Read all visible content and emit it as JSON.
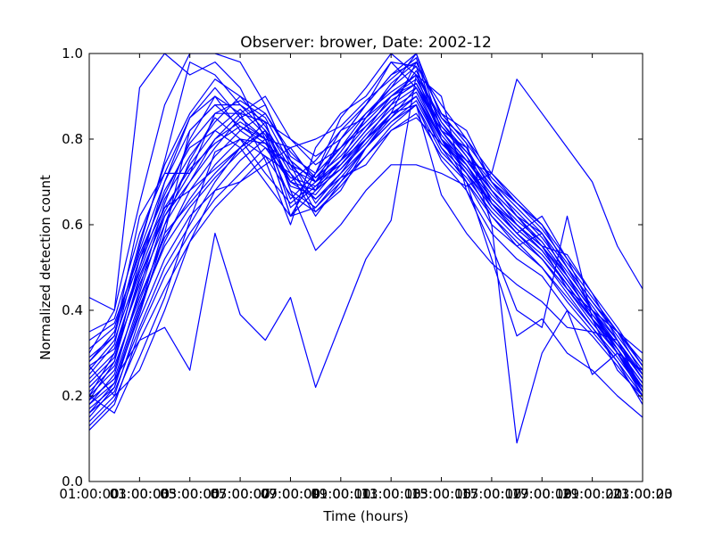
{
  "chart_data": {
    "type": "line",
    "title": "Observer: brower, Date: 2002-12",
    "xlabel": "Time (hours)",
    "ylabel": "Normalized detection count",
    "xlim": [
      1,
      23
    ],
    "ylim": [
      0,
      1.0
    ],
    "grid": false,
    "legend": "none",
    "line_color": "#0000ff",
    "x_ticks": [
      1,
      3,
      5,
      7,
      9,
      11,
      13,
      15,
      17,
      19,
      21,
      23
    ],
    "x_tick_labels": [
      "01:00:00",
      "03:00:00",
      "05:00:00",
      "07:00:00",
      "09:00:00",
      "11:00:00",
      "13:00:00",
      "15:00:00",
      "17:00:00",
      "19:00:00",
      "21:00:00",
      "23:00:00"
    ],
    "x_tick_offset_labels": [
      "",
      "01:00:03",
      "03:00:05",
      "05:00:07",
      "07:00:09",
      "09:00:11",
      "11:00:13",
      "13:00:15",
      "15:00:17",
      "17:00:19",
      "19:00:21",
      "21:00:23"
    ],
    "y_ticks": [
      0.0,
      0.2,
      0.4,
      0.6,
      0.8,
      1.0
    ],
    "y_tick_labels": [
      "0.0",
      "0.2",
      "0.4",
      "0.6",
      "0.8",
      "1.0"
    ],
    "x": [
      1,
      2,
      3,
      4,
      5,
      6,
      7,
      8,
      9,
      10,
      11,
      12,
      13,
      14,
      15,
      16,
      17,
      18,
      19,
      20,
      21,
      22,
      23
    ],
    "series": [
      {
        "values": [
          0.43,
          0.4,
          0.92,
          1.0,
          0.95,
          0.98,
          0.92,
          0.8,
          0.66,
          0.72,
          0.82,
          0.88,
          0.95,
          1.0,
          0.85,
          0.8,
          0.7,
          0.62,
          0.58,
          0.48,
          0.4,
          0.35,
          0.3
        ]
      },
      {
        "values": [
          0.3,
          0.4,
          0.65,
          0.88,
          1.0,
          1.0,
          0.98,
          0.88,
          0.75,
          0.7,
          0.75,
          0.85,
          0.92,
          1.0,
          0.82,
          0.78,
          0.68,
          0.6,
          0.55,
          0.45,
          0.38,
          0.3,
          0.22
        ]
      },
      {
        "values": [
          0.25,
          0.32,
          0.55,
          0.75,
          0.98,
          0.95,
          0.88,
          0.82,
          0.7,
          0.68,
          0.8,
          0.88,
          0.98,
          0.97,
          0.8,
          0.75,
          0.72,
          0.65,
          0.6,
          0.5,
          0.42,
          0.35,
          0.25
        ]
      },
      {
        "values": [
          0.2,
          0.3,
          0.5,
          0.7,
          0.85,
          0.92,
          0.85,
          0.8,
          0.62,
          0.72,
          0.85,
          0.92,
          1.0,
          0.95,
          0.85,
          0.78,
          0.65,
          0.58,
          0.62,
          0.52,
          0.4,
          0.32,
          0.24
        ]
      },
      {
        "values": [
          0.18,
          0.25,
          0.45,
          0.65,
          0.8,
          0.9,
          0.86,
          0.75,
          0.6,
          0.78,
          0.86,
          0.9,
          0.98,
          0.92,
          0.8,
          0.72,
          0.62,
          0.55,
          0.58,
          0.48,
          0.38,
          0.3,
          0.22
        ]
      },
      {
        "values": [
          0.15,
          0.22,
          0.4,
          0.6,
          0.75,
          0.85,
          0.8,
          0.72,
          0.65,
          0.7,
          0.8,
          0.88,
          0.95,
          0.98,
          0.86,
          0.82,
          0.7,
          0.65,
          0.6,
          0.5,
          0.4,
          0.3,
          0.2
        ]
      },
      {
        "values": [
          0.28,
          0.35,
          0.52,
          0.68,
          0.78,
          0.82,
          0.78,
          0.7,
          0.62,
          0.68,
          0.75,
          0.82,
          0.88,
          0.92,
          0.82,
          0.75,
          0.68,
          0.62,
          0.55,
          0.48,
          0.38,
          0.32,
          0.25
        ]
      },
      {
        "values": [
          0.35,
          0.38,
          0.58,
          0.72,
          0.85,
          0.9,
          0.82,
          0.78,
          0.7,
          0.75,
          0.82,
          0.85,
          0.9,
          0.95,
          0.8,
          0.72,
          0.65,
          0.58,
          0.52,
          0.45,
          0.4,
          0.35,
          0.28
        ]
      },
      {
        "values": [
          0.22,
          0.28,
          0.48,
          0.62,
          0.7,
          0.78,
          0.85,
          0.88,
          0.75,
          0.65,
          0.72,
          0.8,
          0.86,
          0.9,
          0.78,
          0.7,
          0.6,
          0.55,
          0.5,
          0.42,
          0.35,
          0.28,
          0.2
        ]
      },
      {
        "values": [
          0.19,
          0.24,
          0.42,
          0.58,
          0.65,
          0.72,
          0.78,
          0.82,
          0.72,
          0.62,
          0.7,
          0.78,
          0.84,
          0.88,
          0.75,
          0.68,
          0.58,
          0.52,
          0.48,
          0.4,
          0.34,
          0.27,
          0.19
        ]
      },
      {
        "values": [
          0.14,
          0.2,
          0.38,
          0.52,
          0.62,
          0.68,
          0.75,
          0.8,
          0.78,
          0.7,
          0.75,
          0.82,
          0.9,
          0.93,
          0.82,
          0.74,
          0.64,
          0.58,
          0.52,
          0.44,
          0.36,
          0.28,
          0.18
        ]
      },
      {
        "values": [
          0.12,
          0.18,
          0.35,
          0.48,
          0.58,
          0.66,
          0.72,
          0.78,
          0.74,
          0.68,
          0.73,
          0.8,
          0.88,
          0.96,
          0.84,
          0.76,
          0.66,
          0.6,
          0.54,
          0.46,
          0.38,
          0.3,
          0.2
        ]
      },
      {
        "values": [
          0.26,
          0.33,
          0.5,
          0.66,
          0.76,
          0.84,
          0.9,
          0.86,
          0.76,
          0.72,
          0.78,
          0.84,
          0.9,
          0.94,
          0.83,
          0.77,
          0.7,
          0.64,
          0.58,
          0.5,
          0.42,
          0.34,
          0.26
        ]
      },
      {
        "values": [
          0.24,
          0.3,
          0.46,
          0.6,
          0.7,
          0.8,
          0.84,
          0.8,
          0.7,
          0.66,
          0.72,
          0.78,
          0.84,
          0.89,
          0.78,
          0.72,
          0.64,
          0.58,
          0.53,
          0.46,
          0.38,
          0.31,
          0.23
        ]
      },
      {
        "values": [
          0.31,
          0.36,
          0.54,
          0.7,
          0.82,
          0.88,
          0.88,
          0.84,
          0.68,
          0.64,
          0.7,
          0.76,
          0.82,
          0.86,
          0.76,
          0.7,
          0.62,
          0.56,
          0.5,
          0.43,
          0.36,
          0.29,
          0.21
        ]
      },
      {
        "values": [
          0.2,
          0.26,
          0.44,
          0.62,
          0.72,
          0.8,
          0.86,
          0.9,
          0.8,
          0.74,
          0.78,
          0.86,
          0.92,
          0.97,
          0.88,
          0.8,
          0.72,
          0.66,
          0.6,
          0.52,
          0.44,
          0.36,
          0.27
        ]
      },
      {
        "values": [
          0.17,
          0.22,
          0.4,
          0.56,
          0.68,
          0.76,
          0.82,
          0.86,
          0.77,
          0.71,
          0.76,
          0.83,
          0.89,
          0.93,
          0.81,
          0.74,
          0.66,
          0.6,
          0.55,
          0.47,
          0.39,
          0.31,
          0.22
        ]
      },
      {
        "values": [
          0.29,
          0.34,
          0.56,
          0.74,
          0.86,
          0.94,
          0.9,
          0.83,
          0.73,
          0.7,
          0.77,
          0.85,
          0.93,
          0.98,
          0.86,
          0.79,
          0.71,
          0.65,
          0.59,
          0.51,
          0.43,
          0.35,
          0.27
        ]
      },
      {
        "values": [
          0.16,
          0.21,
          0.36,
          0.5,
          0.6,
          0.7,
          0.78,
          0.84,
          0.8,
          0.76,
          0.8,
          0.86,
          0.91,
          0.95,
          0.84,
          0.77,
          0.69,
          0.63,
          0.57,
          0.49,
          0.41,
          0.33,
          0.24
        ]
      },
      {
        "values": [
          0.21,
          0.27,
          0.43,
          0.57,
          0.66,
          0.74,
          0.8,
          0.76,
          0.67,
          0.63,
          0.69,
          0.76,
          0.83,
          0.88,
          0.77,
          0.71,
          0.63,
          0.57,
          0.52,
          0.45,
          0.37,
          0.3,
          0.22
        ]
      },
      {
        "values": [
          0.23,
          0.29,
          0.47,
          0.63,
          0.74,
          0.82,
          0.87,
          0.81,
          0.69,
          0.67,
          0.74,
          0.81,
          0.87,
          0.91,
          0.8,
          0.74,
          0.66,
          0.6,
          0.55,
          0.47,
          0.39,
          0.32,
          0.24
        ]
      },
      {
        "values": [
          0.27,
          0.31,
          0.49,
          0.64,
          0.73,
          0.79,
          0.83,
          0.79,
          0.71,
          0.69,
          0.75,
          0.8,
          0.85,
          0.9,
          0.79,
          0.73,
          0.65,
          0.59,
          0.54,
          0.46,
          0.38,
          0.31,
          0.23
        ]
      },
      {
        "values": [
          0.33,
          0.37,
          0.53,
          0.67,
          0.79,
          0.86,
          0.89,
          0.85,
          0.74,
          0.71,
          0.78,
          0.83,
          0.89,
          0.93,
          0.83,
          0.76,
          0.68,
          0.62,
          0.56,
          0.48,
          0.4,
          0.33,
          0.25
        ]
      },
      {
        "values": [
          0.18,
          0.23,
          0.41,
          0.55,
          0.64,
          0.71,
          0.77,
          0.82,
          0.75,
          0.7,
          0.74,
          0.8,
          0.86,
          0.9,
          0.8,
          0.73,
          0.65,
          0.59,
          0.54,
          0.46,
          0.38,
          0.3,
          0.21
        ]
      },
      {
        "values": [
          0.13,
          0.19,
          0.33,
          0.45,
          0.56,
          0.64,
          0.7,
          0.76,
          0.72,
          0.66,
          0.71,
          0.78,
          0.85,
          0.92,
          0.82,
          0.75,
          0.67,
          0.61,
          0.56,
          0.48,
          0.4,
          0.31,
          0.21
        ]
      },
      {
        "values": [
          0.27,
          0.2,
          0.26,
          0.4,
          0.56,
          0.68,
          0.7,
          0.74,
          0.78,
          0.8,
          0.83,
          0.89,
          0.94,
          0.99,
          0.8,
          0.7,
          0.52,
          0.34,
          0.38,
          0.3,
          0.26,
          0.2,
          0.15
        ]
      },
      {
        "values": [
          0.2,
          0.16,
          0.29,
          0.43,
          0.61,
          0.77,
          0.8,
          0.79,
          0.74,
          0.63,
          0.68,
          0.78,
          0.86,
          0.98,
          0.86,
          0.79,
          0.6,
          0.09,
          0.3,
          0.4,
          0.25,
          0.3,
          0.26
        ]
      },
      {
        "values": [
          0.19,
          0.24,
          0.33,
          0.36,
          0.26,
          0.58,
          0.39,
          0.33,
          0.43,
          0.22,
          0.37,
          0.52,
          0.61,
          0.95,
          0.9,
          0.68,
          0.55,
          0.4,
          0.36,
          0.62,
          0.38,
          0.26,
          0.2
        ]
      },
      {
        "values": [
          0.28,
          0.34,
          0.62,
          0.72,
          0.72,
          0.86,
          0.86,
          0.84,
          0.68,
          0.54,
          0.6,
          0.68,
          0.74,
          0.74,
          0.72,
          0.69,
          0.72,
          0.94,
          0.86,
          0.78,
          0.7,
          0.55,
          0.45
        ]
      },
      {
        "values": [
          0.16,
          0.23,
          0.39,
          0.58,
          0.82,
          0.88,
          0.83,
          0.8,
          0.62,
          0.64,
          0.71,
          0.74,
          0.82,
          0.85,
          0.79,
          0.74,
          0.65,
          0.6,
          0.55,
          0.53,
          0.44,
          0.33,
          0.24
        ]
      },
      {
        "values": [
          0.19,
          0.28,
          0.52,
          0.64,
          0.68,
          0.73,
          0.78,
          0.82,
          0.64,
          0.69,
          0.73,
          0.79,
          0.86,
          0.88,
          0.67,
          0.58,
          0.51,
          0.46,
          0.42,
          0.36,
          0.35,
          0.33,
          0.21
        ]
      }
    ]
  }
}
